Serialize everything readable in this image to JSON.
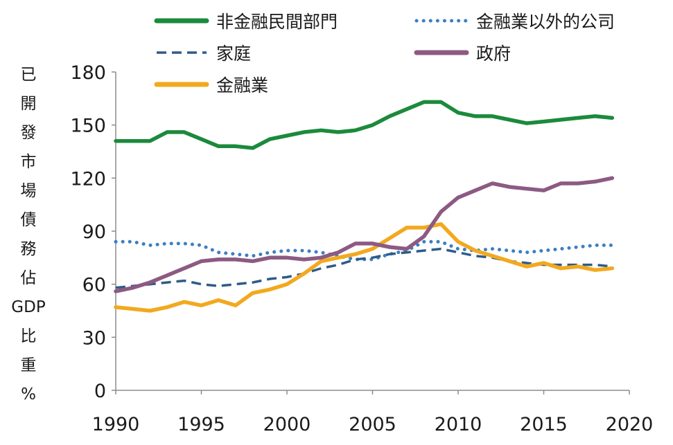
{
  "chart_data": {
    "type": "line",
    "ylabel": "已開發市場債務佔GDP比重%",
    "ylim": [
      0,
      180
    ],
    "yticks": [
      0,
      30,
      60,
      90,
      120,
      150,
      180
    ],
    "xlim": [
      1990,
      2020
    ],
    "xticks": [
      1990,
      1995,
      2000,
      2005,
      2010,
      2015,
      2020
    ],
    "legend_position": "top",
    "grid": false,
    "series": [
      {
        "name": "非金融民間部門",
        "style": "solid",
        "color": "#1b8a3c",
        "x": [
          1990,
          1991,
          1992,
          1993,
          1994,
          1995,
          1996,
          1997,
          1998,
          1999,
          2000,
          2001,
          2002,
          2003,
          2004,
          2005,
          2006,
          2007,
          2008,
          2009,
          2010,
          2011,
          2012,
          2013,
          2014,
          2015,
          2016,
          2017,
          2018,
          2019
        ],
        "values": [
          141,
          141,
          141,
          146,
          146,
          142,
          138,
          138,
          137,
          142,
          144,
          146,
          147,
          146,
          147,
          150,
          155,
          159,
          163,
          163,
          157,
          155,
          155,
          153,
          151,
          152,
          153,
          154,
          155,
          154
        ]
      },
      {
        "name": "金融業以外的公司",
        "style": "dotted",
        "color": "#3c7fc0",
        "x": [
          1990,
          1991,
          1992,
          1993,
          1994,
          1995,
          1996,
          1997,
          1998,
          1999,
          2000,
          2001,
          2002,
          2003,
          2004,
          2005,
          2006,
          2007,
          2008,
          2009,
          2010,
          2011,
          2012,
          2013,
          2014,
          2015,
          2016,
          2017,
          2018,
          2019
        ],
        "values": [
          84,
          84,
          82,
          83,
          83,
          82,
          78,
          77,
          76,
          78,
          79,
          79,
          78,
          76,
          74,
          74,
          77,
          79,
          84,
          84,
          80,
          79,
          80,
          79,
          78,
          79,
          80,
          81,
          82,
          82
        ]
      },
      {
        "name": "家庭",
        "style": "dashed",
        "color": "#2e5b88",
        "x": [
          1990,
          1991,
          1992,
          1993,
          1994,
          1995,
          1996,
          1997,
          1998,
          1999,
          2000,
          2001,
          2002,
          2003,
          2004,
          2005,
          2006,
          2007,
          2008,
          2009,
          2010,
          2011,
          2012,
          2013,
          2014,
          2015,
          2016,
          2017,
          2018,
          2019
        ],
        "values": [
          58,
          59,
          60,
          61,
          62,
          60,
          59,
          60,
          61,
          63,
          64,
          66,
          69,
          71,
          74,
          75,
          77,
          78,
          79,
          80,
          78,
          76,
          75,
          73,
          72,
          71,
          71,
          71,
          71,
          70
        ]
      },
      {
        "name": "政府",
        "style": "solid",
        "color": "#8c5a82",
        "x": [
          1990,
          1991,
          1992,
          1993,
          1994,
          1995,
          1996,
          1997,
          1998,
          1999,
          2000,
          2001,
          2002,
          2003,
          2004,
          2005,
          2006,
          2007,
          2008,
          2009,
          2010,
          2011,
          2012,
          2013,
          2014,
          2015,
          2016,
          2017,
          2018,
          2019
        ],
        "values": [
          56,
          58,
          61,
          65,
          69,
          73,
          74,
          74,
          73,
          75,
          75,
          74,
          75,
          78,
          83,
          83,
          81,
          80,
          87,
          101,
          109,
          113,
          117,
          115,
          114,
          113,
          117,
          117,
          118,
          120
        ]
      },
      {
        "name": "金融業",
        "style": "solid",
        "color": "#f2a91f",
        "x": [
          1990,
          1991,
          1992,
          1993,
          1994,
          1995,
          1996,
          1997,
          1998,
          1999,
          2000,
          2001,
          2002,
          2003,
          2004,
          2005,
          2006,
          2007,
          2008,
          2009,
          2010,
          2011,
          2012,
          2013,
          2014,
          2015,
          2016,
          2017,
          2018,
          2019
        ],
        "values": [
          47,
          46,
          45,
          47,
          50,
          48,
          51,
          48,
          55,
          57,
          60,
          66,
          73,
          75,
          77,
          80,
          86,
          92,
          92,
          94,
          84,
          79,
          76,
          73,
          70,
          72,
          69,
          70,
          68,
          69
        ]
      }
    ]
  }
}
